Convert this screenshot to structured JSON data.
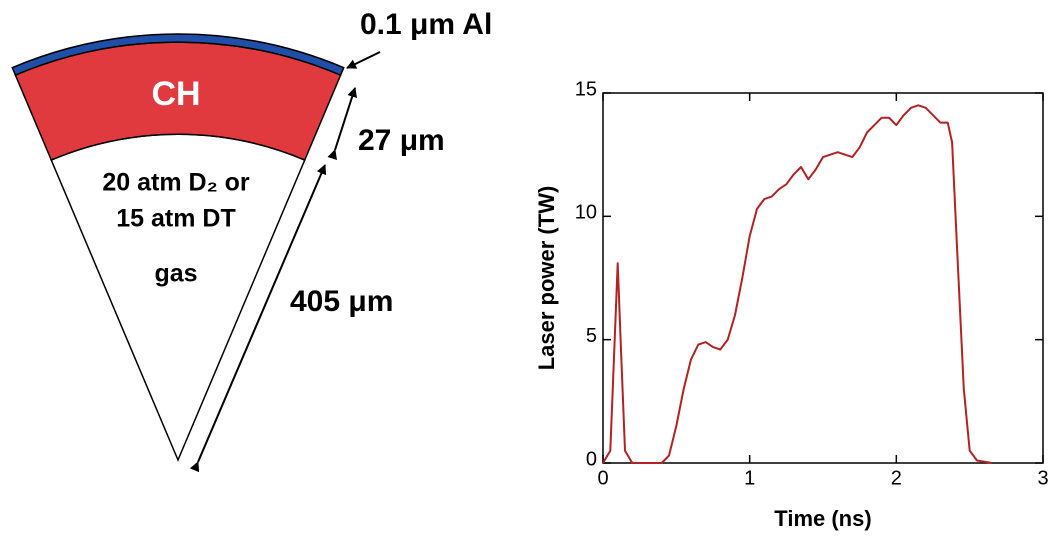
{
  "diagram": {
    "labels": {
      "al_layer": "0.1 μm Al",
      "ch_layer": "CH",
      "ch_thickness": "27 μm",
      "gas_line1": "20 atm D₂ or",
      "gas_line2": "15 atm DT",
      "gas_line3": "gas",
      "radius": "405 μm"
    }
  },
  "chart_data": {
    "type": "line",
    "xlabel": "Time (ns)",
    "ylabel": "Laser power (TW)",
    "x": [
      0.0,
      0.05,
      0.08,
      0.1,
      0.12,
      0.15,
      0.2,
      0.4,
      0.45,
      0.5,
      0.55,
      0.6,
      0.65,
      0.7,
      0.75,
      0.8,
      0.85,
      0.9,
      0.95,
      1.0,
      1.05,
      1.1,
      1.15,
      1.2,
      1.25,
      1.3,
      1.35,
      1.4,
      1.45,
      1.5,
      1.6,
      1.7,
      1.75,
      1.8,
      1.9,
      1.95,
      2.0,
      2.05,
      2.1,
      2.15,
      2.2,
      2.25,
      2.3,
      2.35,
      2.38,
      2.42,
      2.46,
      2.5,
      2.55,
      2.65
    ],
    "values": [
      0,
      0.5,
      5,
      8.1,
      5,
      0.5,
      0,
      0,
      0.3,
      1.5,
      3,
      4.2,
      4.8,
      4.9,
      4.7,
      4.6,
      5,
      6,
      7.5,
      9.2,
      10.3,
      10.7,
      10.8,
      11.1,
      11.3,
      11.7,
      12.0,
      11.5,
      11.9,
      12.4,
      12.6,
      12.4,
      12.8,
      13.4,
      14.0,
      14.0,
      13.7,
      14.1,
      14.4,
      14.5,
      14.4,
      14.1,
      13.8,
      13.8,
      13,
      8,
      3,
      0.5,
      0.1,
      0
    ],
    "color": "#b22222",
    "xlim": [
      0,
      3
    ],
    "xticks": [
      0,
      1,
      2,
      3
    ],
    "ylim": [
      0,
      15
    ],
    "yticks": [
      0,
      5,
      10,
      15
    ]
  }
}
